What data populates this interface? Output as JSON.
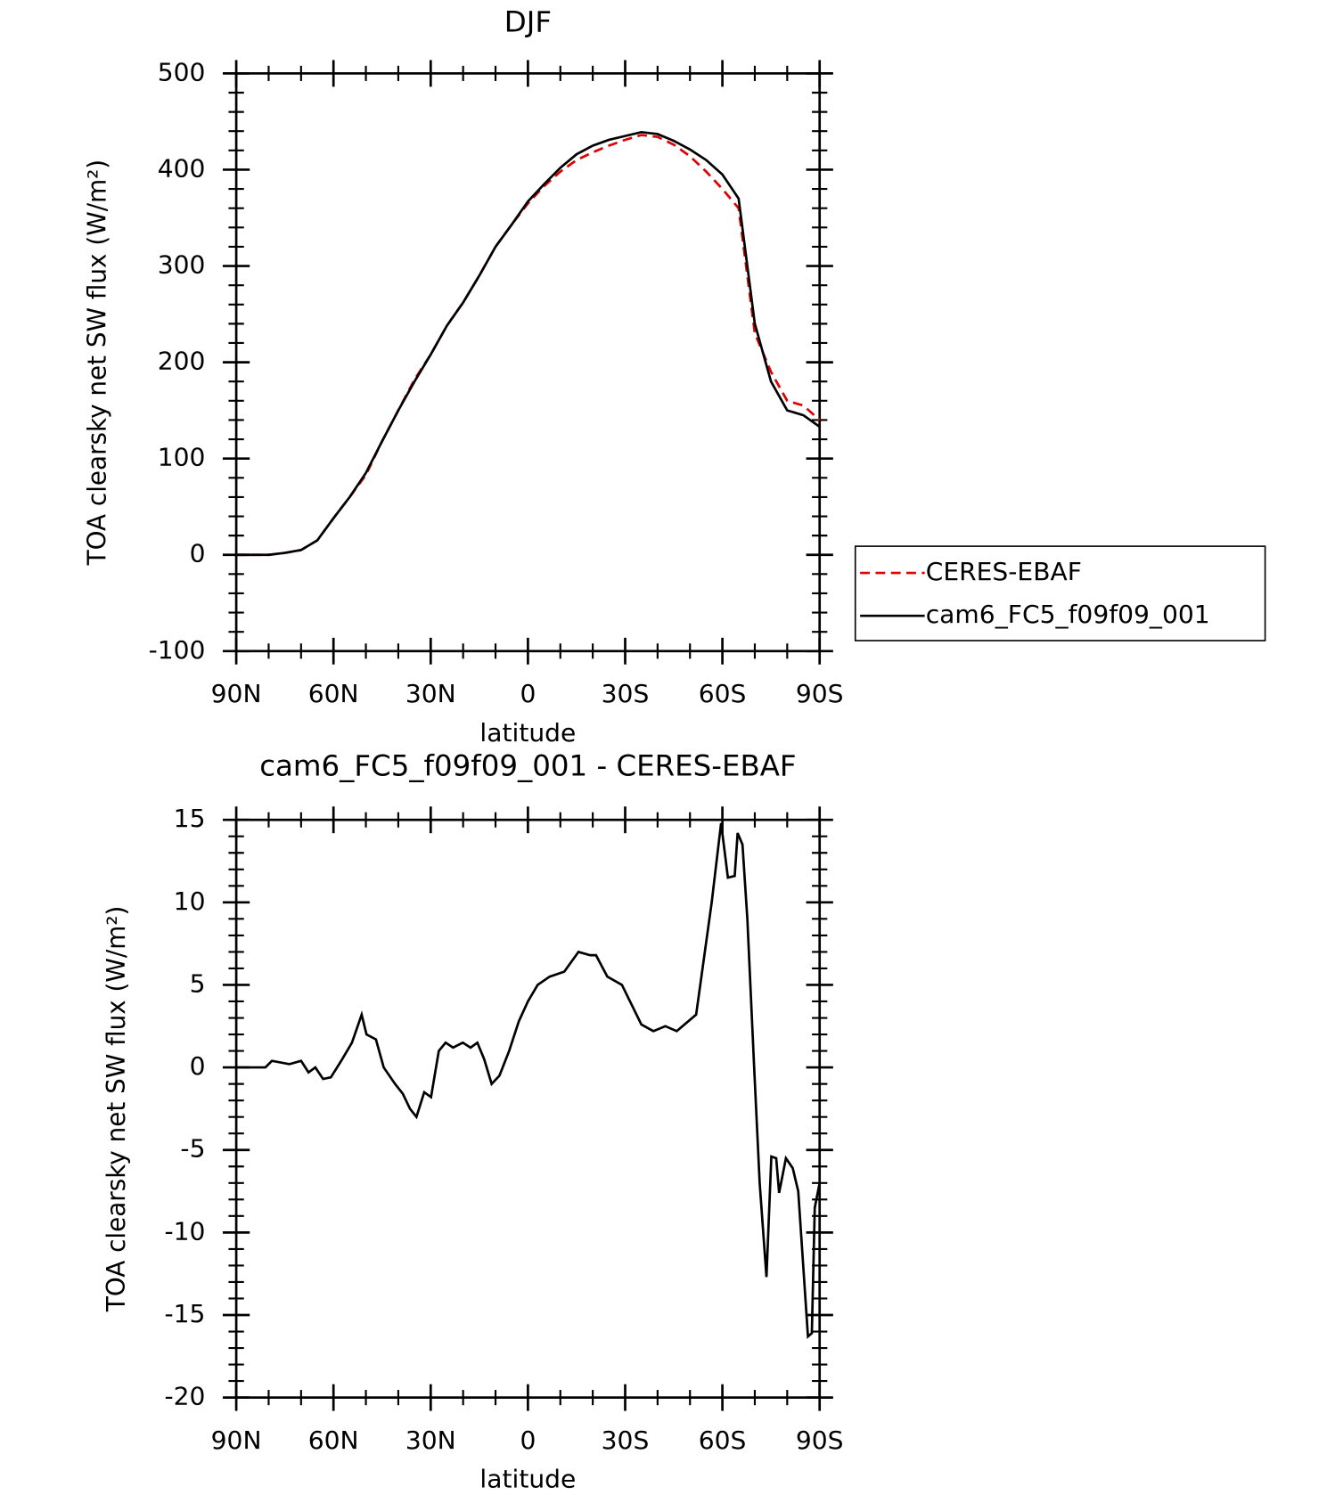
{
  "chart_data": [
    {
      "type": "line",
      "title": "DJF",
      "xlabel": "latitude",
      "ylabel": "TOA clearsky net SW flux (W/m²)",
      "x": [
        90,
        85,
        80,
        75,
        70,
        65,
        60,
        55,
        50,
        45,
        40,
        35,
        30,
        25,
        20,
        15,
        10,
        5,
        0,
        -5,
        -10,
        -15,
        -20,
        -25,
        -30,
        -35,
        -40,
        -45,
        -50,
        -55,
        -60,
        -65,
        -70,
        -75,
        -80,
        -85,
        -90
      ],
      "series": [
        {
          "name": "CERES-EBAF",
          "color": "#e00000",
          "dash": true,
          "values": [
            0,
            0,
            0,
            2,
            5,
            15,
            38,
            60,
            83,
            118,
            150,
            182,
            208,
            238,
            262,
            290,
            320,
            343,
            365,
            383,
            398,
            410,
            418,
            425,
            431,
            436,
            434,
            426,
            414,
            398,
            380,
            360,
            230,
            190,
            160,
            155,
            140
          ]
        },
        {
          "name": "cam6_FC5_f09f09_001",
          "color": "#000000",
          "dash": false,
          "values": [
            0,
            0,
            0,
            2,
            5,
            15,
            38,
            60,
            85,
            118,
            150,
            180,
            208,
            238,
            262,
            290,
            320,
            343,
            367,
            385,
            402,
            416,
            425,
            431,
            435,
            439,
            437,
            430,
            421,
            410,
            395,
            370,
            240,
            180,
            150,
            145,
            133
          ]
        }
      ],
      "xlim": [
        90,
        -90
      ],
      "xticks": [
        {
          "value": 90,
          "label": "90N"
        },
        {
          "value": 60,
          "label": "60N"
        },
        {
          "value": 30,
          "label": "30N"
        },
        0,
        {
          "value": -30,
          "label": "30S"
        },
        {
          "value": -60,
          "label": "60S"
        },
        {
          "value": -90,
          "label": "90S"
        }
      ],
      "ylim": [
        -100,
        500
      ],
      "yticks": [
        -100,
        0,
        100,
        200,
        300,
        400,
        500
      ],
      "legend": "right"
    },
    {
      "type": "line",
      "title": "cam6_FC5_f09f09_001 - CERES-EBAF",
      "xlabel": "latitude",
      "ylabel": "TOA clearsky net SW flux (W/m²)",
      "x": [
        90,
        81,
        79,
        73.6,
        70,
        67.7,
        65.6,
        63.2,
        60.8,
        57.3,
        54.3,
        51.3,
        49.8,
        46.9,
        44.5,
        41,
        38.6,
        36.4,
        34.4,
        32,
        29.9,
        27.5,
        25.4,
        23.1,
        20.1,
        17.7,
        15.6,
        13.5,
        11.2,
        8.8,
        5.8,
        2.8,
        0,
        -3,
        -6.7,
        -11.2,
        -15.6,
        -19.2,
        -21,
        -24.5,
        -29,
        -32,
        -35,
        -38.7,
        -42.4,
        -45.9,
        -51.9,
        -56.7,
        -59.6,
        -61.7,
        -63.8,
        -64.7,
        -66.2,
        -67.7,
        -69.8,
        -71.5,
        -73.6,
        -75.1,
        -76.6,
        -77.5,
        -79.6,
        -81.7,
        -83.4,
        -86.4,
        -87.6,
        -88.5,
        -90
      ],
      "series": [
        {
          "color": "#000000",
          "dash": false,
          "values": [
            0,
            0,
            0.4,
            0.2,
            0.4,
            -0.3,
            0,
            -0.7,
            -0.6,
            0.5,
            1.5,
            3.2,
            2,
            1.7,
            0,
            -1,
            -1.6,
            -2.5,
            -3,
            -1.5,
            -1.8,
            1,
            1.5,
            1.2,
            1.5,
            1.2,
            1.5,
            0.5,
            -1,
            -0.5,
            1,
            2.8,
            4,
            5,
            5.5,
            5.8,
            7,
            6.8,
            6.8,
            5.5,
            5,
            3.8,
            2.6,
            2.2,
            2.5,
            2.2,
            3.2,
            10,
            14.8,
            11.5,
            11.6,
            14.2,
            13.5,
            9,
            0,
            -7,
            -12.7,
            -5.4,
            -5.5,
            -7.6,
            -5.5,
            -6.1,
            -7.5,
            -16.3,
            -16.1,
            -8.5,
            -7
          ]
        }
      ],
      "xlim": [
        90,
        -90
      ],
      "xticks": [
        {
          "value": 90,
          "label": "90N"
        },
        {
          "value": 60,
          "label": "60N"
        },
        {
          "value": 30,
          "label": "30N"
        },
        0,
        {
          "value": -30,
          "label": "30S"
        },
        {
          "value": -60,
          "label": "60S"
        },
        {
          "value": -90,
          "label": "90S"
        }
      ],
      "ylim": [
        -20,
        15
      ],
      "yticks": [
        -20,
        -15,
        -10,
        -5,
        0,
        5,
        10,
        15
      ]
    }
  ]
}
